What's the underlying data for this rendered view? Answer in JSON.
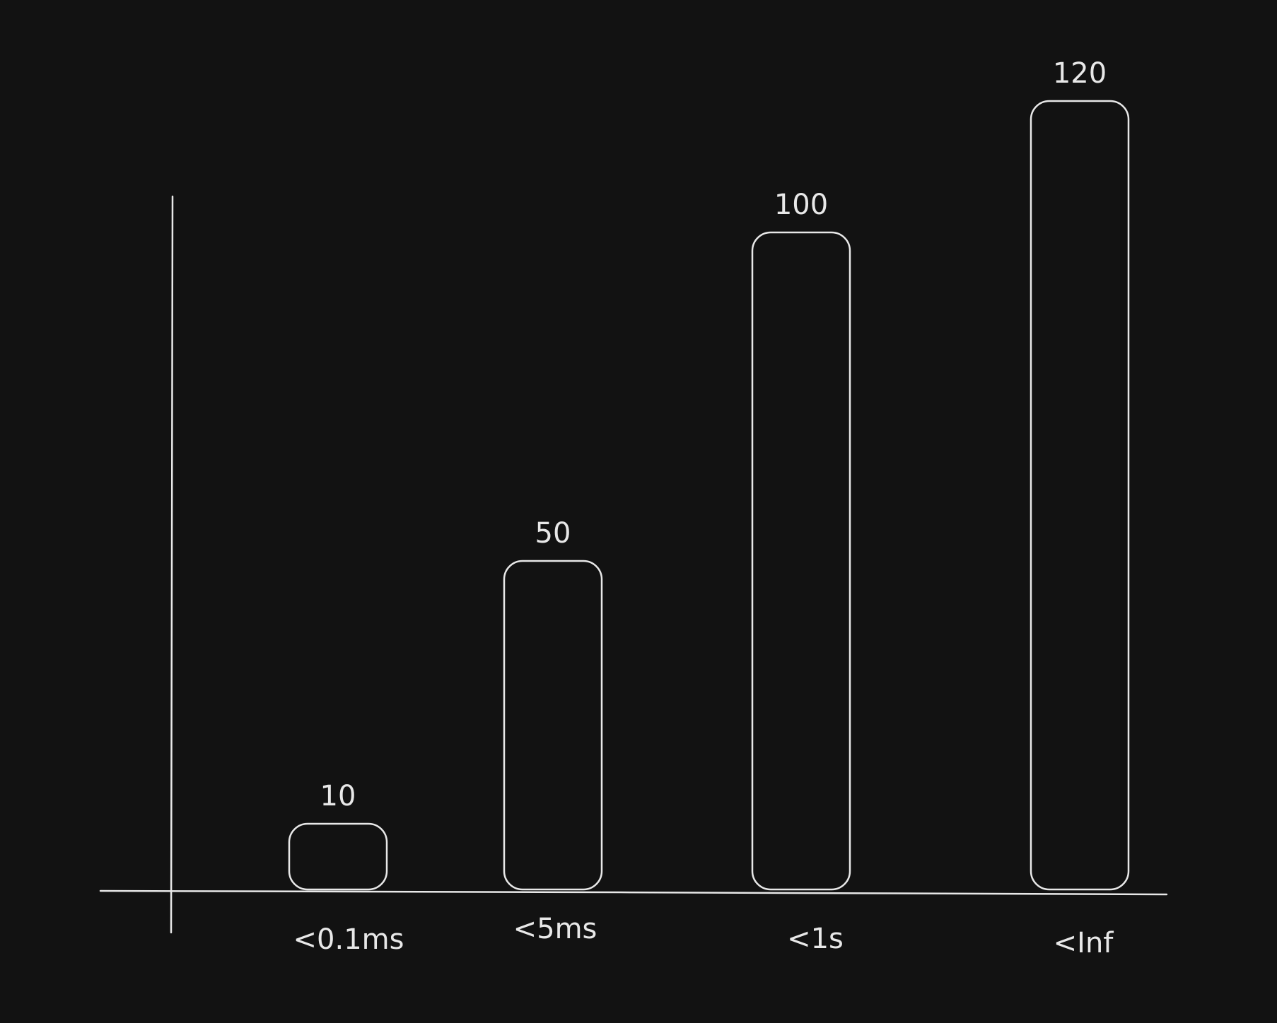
{
  "chart_data": {
    "type": "bar",
    "title": "",
    "xlabel": "",
    "ylabel": "",
    "categories": [
      "<0.1ms",
      "<5ms",
      "<1s",
      "<Inf"
    ],
    "values": [
      10,
      50,
      100,
      120
    ],
    "value_labels": [
      "10",
      "50",
      "100",
      "120"
    ],
    "ylim": [
      0,
      120
    ],
    "grid": false,
    "legend": "none",
    "colors": {
      "background": "#121212",
      "stroke": "#e8e8e8"
    }
  }
}
